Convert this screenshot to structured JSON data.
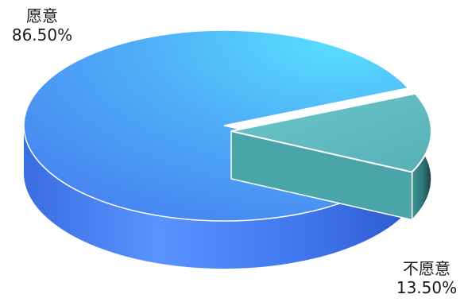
{
  "chart_data": {
    "type": "pie",
    "style": "3d",
    "slices": [
      {
        "label": "愿意",
        "value": 86.5,
        "value_text": "86.50%"
      },
      {
        "label": "不愿意",
        "value": 13.5,
        "value_text": "13.50%"
      }
    ],
    "colors": {
      "slice_1_top": "#4faef7",
      "slice_1_side": "#4a7ef0",
      "slice_2_top": "#62bcc1",
      "slice_2_side": "#2a6e70",
      "edge": "#ffffff"
    }
  }
}
